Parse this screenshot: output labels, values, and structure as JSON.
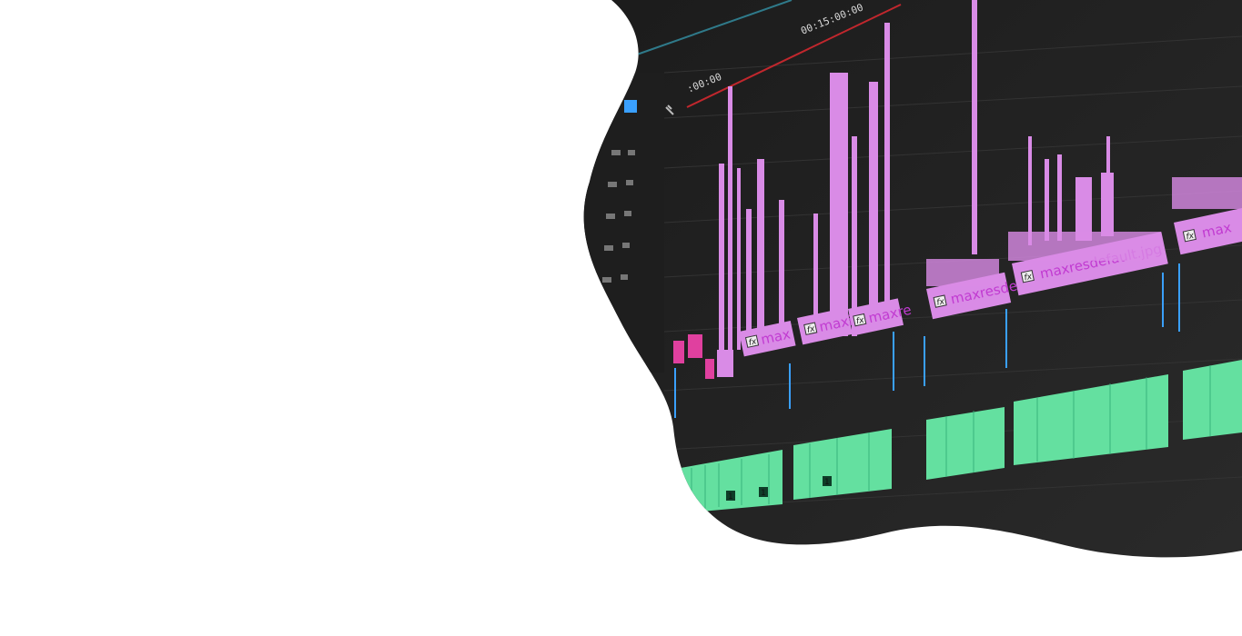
{
  "timeline": {
    "timecode_ruler": ":00:00",
    "timecode_main": "00:15:00:00"
  },
  "clips": {
    "video": [
      {
        "label": "max"
      },
      {
        "label": "maxi"
      },
      {
        "label": "maxre"
      },
      {
        "label": "maxresde"
      },
      {
        "label": "maxresdefault.jpg"
      },
      {
        "label": "max"
      }
    ],
    "audio_markers": [
      "1",
      "1",
      "1"
    ]
  },
  "colors": {
    "panel_background": "#242424",
    "video_clip": "#d98be6",
    "video_clip_label": "#c13bd1",
    "audio_clip": "#64e0a0",
    "playhead_range": "#c1272d",
    "panel_blue": "#3aa0ff"
  },
  "icons": {
    "fx": "fx-icon",
    "wrench": "wrench-icon"
  }
}
